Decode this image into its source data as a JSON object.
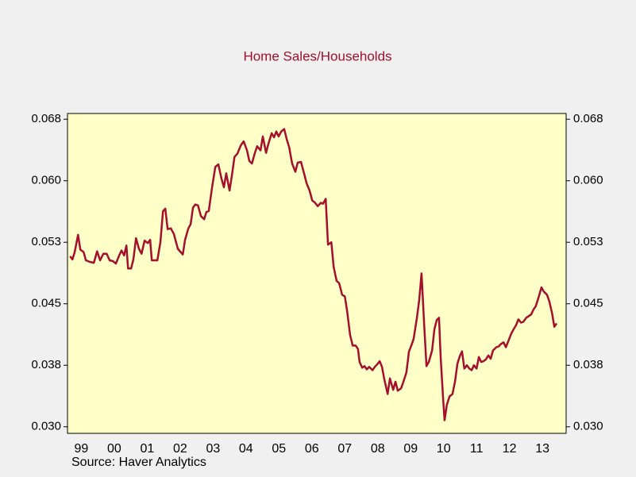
{
  "chart_data": {
    "type": "line",
    "title": "Home Sales/Households",
    "source": "Source: Haver Analytics",
    "xlim": [
      1999.08,
      2014.22
    ],
    "ylim": [
      0.0292,
      0.0682
    ],
    "yticks": [
      {
        "value": 0.03,
        "label": "0.030"
      },
      {
        "value": 0.0375,
        "label": "0.038"
      },
      {
        "value": 0.045,
        "label": "0.045"
      },
      {
        "value": 0.0525,
        "label": "0.053"
      },
      {
        "value": 0.06,
        "label": "0.060"
      },
      {
        "value": 0.0675,
        "label": "0.068"
      }
    ],
    "xticks": [
      {
        "value": 1999.5,
        "label": "99"
      },
      {
        "value": 2000.5,
        "label": "00"
      },
      {
        "value": 2001.5,
        "label": "01"
      },
      {
        "value": 2002.5,
        "label": "02"
      },
      {
        "value": 2003.5,
        "label": "03"
      },
      {
        "value": 2004.5,
        "label": "04"
      },
      {
        "value": 2005.5,
        "label": "05"
      },
      {
        "value": 2006.5,
        "label": "06"
      },
      {
        "value": 2007.5,
        "label": "07"
      },
      {
        "value": 2008.5,
        "label": "08"
      },
      {
        "value": 2009.5,
        "label": "09"
      },
      {
        "value": 2010.5,
        "label": "10"
      },
      {
        "value": 2011.5,
        "label": "11"
      },
      {
        "value": 2012.5,
        "label": "12"
      },
      {
        "value": 2013.5,
        "label": "13"
      }
    ],
    "color": "#a50f2d",
    "x": [
      1999.16,
      1999.23,
      1999.3,
      1999.4,
      1999.47,
      1999.57,
      1999.64,
      1999.76,
      1999.88,
      1999.98,
      2000.07,
      2000.17,
      2000.27,
      2000.36,
      2000.46,
      2000.55,
      2000.65,
      2000.72,
      2000.8,
      2000.87,
      2000.92,
      2001.01,
      2001.08,
      2001.16,
      2001.25,
      2001.33,
      2001.42,
      2001.52,
      2001.59,
      2001.64,
      2001.81,
      2001.9,
      2001.98,
      2002.05,
      2002.12,
      2002.22,
      2002.31,
      2002.43,
      2002.58,
      2002.65,
      2002.75,
      2002.82,
      2002.89,
      2002.96,
      2003.04,
      2003.13,
      2003.23,
      2003.3,
      2003.37,
      2003.47,
      2003.57,
      2003.66,
      2003.76,
      2003.83,
      2003.9,
      2004.0,
      2004.07,
      2004.15,
      2004.24,
      2004.34,
      2004.43,
      2004.53,
      2004.6,
      2004.68,
      2004.77,
      2004.84,
      2004.94,
      2005.01,
      2005.11,
      2005.18,
      2005.28,
      2005.35,
      2005.42,
      2005.49,
      2005.57,
      2005.66,
      2005.74,
      2005.81,
      2005.9,
      2006.0,
      2006.07,
      2006.17,
      2006.27,
      2006.34,
      2006.43,
      2006.51,
      2006.6,
      2006.68,
      2006.77,
      2006.84,
      2006.92,
      2006.99,
      2007.09,
      2007.16,
      2007.25,
      2007.33,
      2007.42,
      2007.5,
      2007.57,
      2007.66,
      2007.74,
      2007.83,
      2007.9,
      2007.95,
      2008.03,
      2008.1,
      2008.17,
      2008.24,
      2008.34,
      2008.41,
      2008.48,
      2008.56,
      2008.63,
      2008.7,
      2008.8,
      2008.87,
      2008.97,
      2009.04,
      2009.11,
      2009.21,
      2009.28,
      2009.37,
      2009.45,
      2009.52,
      2009.59,
      2009.69,
      2009.76,
      2009.83,
      2009.91,
      2009.98,
      2010.05,
      2010.15,
      2010.22,
      2010.29,
      2010.36,
      2010.41,
      2010.48,
      2010.53,
      2010.6,
      2010.68,
      2010.77,
      2010.85,
      2010.92,
      2010.99,
      2011.06,
      2011.13,
      2011.21,
      2011.28,
      2011.35,
      2011.42,
      2011.5,
      2011.57,
      2011.64,
      2011.71,
      2011.78,
      2011.86,
      2011.93,
      2012.0,
      2012.1,
      2012.17,
      2012.24,
      2012.32,
      2012.39,
      2012.46,
      2012.56,
      2012.63,
      2012.7,
      2012.77,
      2012.85,
      2012.92,
      2013.01,
      2013.09,
      2013.16,
      2013.23,
      2013.3,
      2013.4,
      2013.47,
      2013.54,
      2013.64,
      2013.71,
      2013.79,
      2013.86,
      2013.93
    ],
    "values": [
      0.0508,
      0.0504,
      0.0513,
      0.0534,
      0.0516,
      0.0513,
      0.0503,
      0.0501,
      0.05,
      0.0514,
      0.0503,
      0.0511,
      0.0511,
      0.0503,
      0.0502,
      0.0499,
      0.0509,
      0.0515,
      0.0509,
      0.0521,
      0.0493,
      0.0493,
      0.0504,
      0.053,
      0.0517,
      0.0511,
      0.0527,
      0.0524,
      0.0528,
      0.0503,
      0.0503,
      0.0525,
      0.0563,
      0.0566,
      0.0541,
      0.0542,
      0.0535,
      0.0517,
      0.051,
      0.0528,
      0.0542,
      0.0547,
      0.0567,
      0.0571,
      0.057,
      0.0557,
      0.0553,
      0.0562,
      0.0563,
      0.0592,
      0.0617,
      0.062,
      0.0602,
      0.0592,
      0.0609,
      0.0588,
      0.0606,
      0.0629,
      0.0633,
      0.0643,
      0.0648,
      0.0637,
      0.0624,
      0.0621,
      0.0634,
      0.0642,
      0.0637,
      0.0654,
      0.0634,
      0.0645,
      0.0658,
      0.0653,
      0.066,
      0.0654,
      0.066,
      0.0663,
      0.065,
      0.0641,
      0.0621,
      0.0611,
      0.0622,
      0.0623,
      0.0608,
      0.0597,
      0.0588,
      0.0576,
      0.0573,
      0.0569,
      0.0573,
      0.0572,
      0.0578,
      0.0522,
      0.0525,
      0.0495,
      0.0478,
      0.0475,
      0.0461,
      0.0459,
      0.0441,
      0.0412,
      0.0399,
      0.0399,
      0.0395,
      0.0379,
      0.0372,
      0.0374,
      0.037,
      0.0373,
      0.0369,
      0.0373,
      0.0376,
      0.038,
      0.0373,
      0.0358,
      0.034,
      0.0359,
      0.0345,
      0.0355,
      0.0344,
      0.0347,
      0.0355,
      0.0366,
      0.0392,
      0.0399,
      0.0407,
      0.0433,
      0.0455,
      0.0487,
      0.0425,
      0.0374,
      0.0379,
      0.0393,
      0.0419,
      0.043,
      0.0433,
      0.0385,
      0.0337,
      0.0308,
      0.0327,
      0.0337,
      0.034,
      0.0356,
      0.0377,
      0.0386,
      0.0392,
      0.0371,
      0.0375,
      0.0371,
      0.0369,
      0.0375,
      0.0371,
      0.0385,
      0.0379,
      0.038,
      0.0382,
      0.0387,
      0.0383,
      0.0393,
      0.0397,
      0.0398,
      0.0401,
      0.0403,
      0.0397,
      0.0404,
      0.0414,
      0.0419,
      0.0424,
      0.0431,
      0.0427,
      0.0428,
      0.0433,
      0.0435,
      0.0437,
      0.0443,
      0.0447,
      0.046,
      0.047,
      0.0465,
      0.0461,
      0.0453,
      0.0439,
      0.0422,
      0.0426
    ]
  }
}
